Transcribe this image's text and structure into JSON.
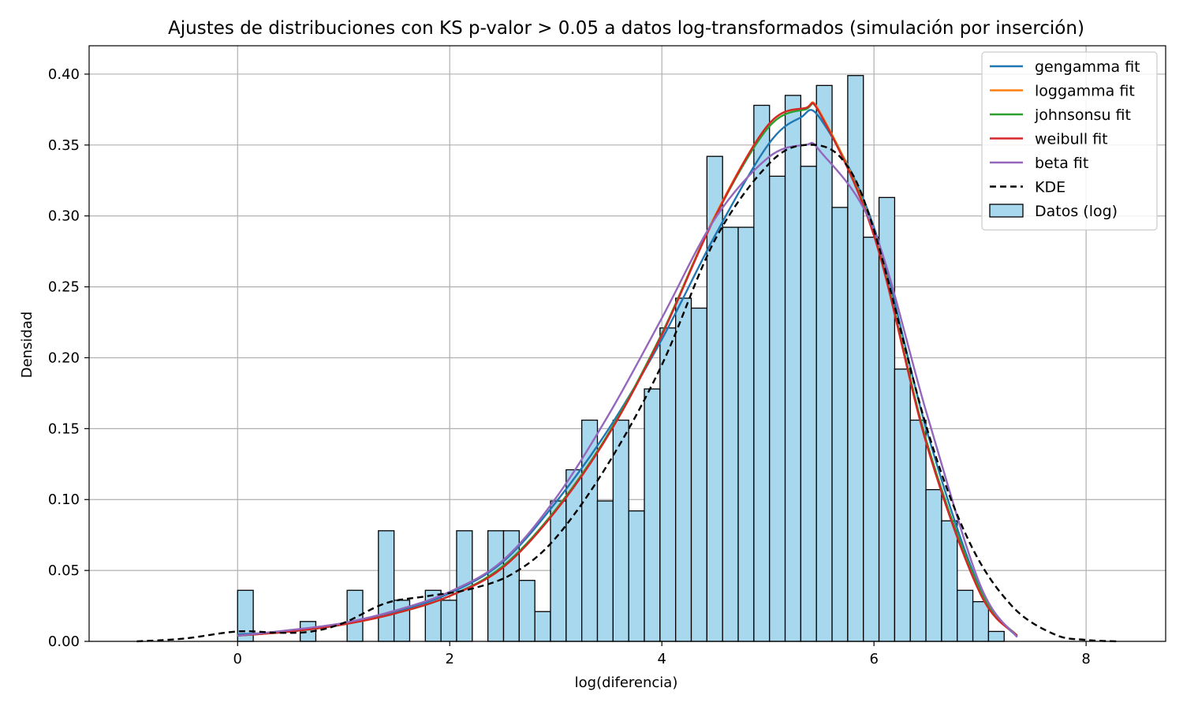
{
  "chart_data": {
    "type": "bar",
    "title": "Ajustes de distribuciones con KS p-valor > 0.05 a datos log-transformados (simulación por inserción)",
    "xlabel": "log(diferencia)",
    "ylabel": "Densidad",
    "xlim": [
      -1.4,
      8.75
    ],
    "ylim": [
      0.0,
      0.42
    ],
    "grid": true,
    "legend_position": "top-right",
    "x_ticks": [
      0,
      2,
      4,
      6,
      8
    ],
    "y_ticks": [
      0.0,
      0.05,
      0.1,
      0.15,
      0.2,
      0.25,
      0.3,
      0.35,
      0.4
    ],
    "histogram": {
      "name": "Datos (log)",
      "color": "#a8d8ee",
      "edge_color": "#000000",
      "bin_start": 0.0,
      "bin_width": 0.1475,
      "values": [
        0.036,
        0.0,
        0.0,
        0.0,
        0.014,
        0.0,
        0.0,
        0.036,
        0.0,
        0.078,
        0.029,
        0.0,
        0.036,
        0.029,
        0.078,
        0.0,
        0.078,
        0.078,
        0.043,
        0.021,
        0.099,
        0.121,
        0.156,
        0.099,
        0.156,
        0.092,
        0.178,
        0.221,
        0.242,
        0.235,
        0.342,
        0.292,
        0.292,
        0.378,
        0.328,
        0.385,
        0.335,
        0.392,
        0.306,
        0.399,
        0.285,
        0.313,
        0.192,
        0.156,
        0.107,
        0.085,
        0.036,
        0.028,
        0.007
      ]
    },
    "series": [
      {
        "name": "gengamma fit",
        "color": "#1f77b4",
        "style": "solid",
        "x": [
          0,
          0.5,
          1,
          1.5,
          2,
          2.5,
          3,
          3.5,
          4,
          4.5,
          5,
          5.3,
          5.5,
          6,
          6.5,
          7,
          7.35
        ],
        "y": [
          0.005,
          0.007,
          0.012,
          0.021,
          0.034,
          0.056,
          0.098,
          0.15,
          0.213,
          0.286,
          0.35,
          0.369,
          0.368,
          0.292,
          0.148,
          0.037,
          0.003
        ]
      },
      {
        "name": "loggamma fit",
        "color": "#ff7f0e",
        "style": "solid",
        "x": [
          0,
          0.5,
          1,
          1.5,
          2,
          2.5,
          3,
          3.5,
          4,
          4.5,
          5,
          5.35,
          5.5,
          6,
          6.5,
          7,
          7.35
        ],
        "y": [
          0.004,
          0.007,
          0.012,
          0.02,
          0.032,
          0.052,
          0.093,
          0.147,
          0.217,
          0.3,
          0.364,
          0.376,
          0.372,
          0.288,
          0.14,
          0.035,
          0.004
        ]
      },
      {
        "name": "johnsonsu fit",
        "color": "#2ca02c",
        "style": "solid",
        "x": [
          0,
          0.5,
          1,
          1.5,
          2,
          2.5,
          3,
          3.5,
          4,
          4.5,
          5,
          5.35,
          5.5,
          6,
          6.5,
          7,
          7.35
        ],
        "y": [
          0.004,
          0.007,
          0.012,
          0.02,
          0.032,
          0.053,
          0.093,
          0.147,
          0.217,
          0.299,
          0.362,
          0.375,
          0.371,
          0.287,
          0.14,
          0.036,
          0.004
        ]
      },
      {
        "name": "weibull fit",
        "color": "#d62728",
        "style": "solid",
        "x": [
          0,
          0.5,
          1,
          1.5,
          2,
          2.5,
          3,
          3.5,
          4,
          4.5,
          5,
          5.35,
          5.5,
          6,
          6.5,
          7,
          7.35
        ],
        "y": [
          0.004,
          0.007,
          0.012,
          0.02,
          0.032,
          0.052,
          0.092,
          0.146,
          0.216,
          0.299,
          0.364,
          0.376,
          0.371,
          0.286,
          0.138,
          0.034,
          0.004
        ]
      },
      {
        "name": "beta fit",
        "color": "#9467bd",
        "style": "solid",
        "x": [
          0,
          0.5,
          1,
          1.5,
          2,
          2.5,
          3,
          3.5,
          4,
          4.5,
          5,
          5.35,
          5.5,
          6,
          6.5,
          7,
          7.35
        ],
        "y": [
          0.004,
          0.008,
          0.013,
          0.022,
          0.035,
          0.057,
          0.101,
          0.16,
          0.228,
          0.298,
          0.341,
          0.35,
          0.345,
          0.29,
          0.16,
          0.04,
          0.003
        ]
      },
      {
        "name": "KDE",
        "color": "#000000",
        "style": "dashed",
        "x": [
          -0.95,
          -0.5,
          0,
          0.4,
          0.7,
          1.0,
          1.4,
          1.8,
          2.2,
          2.6,
          3.0,
          3.5,
          4.0,
          4.5,
          5.0,
          5.35,
          5.7,
          6.0,
          6.5,
          6.9,
          7.3,
          7.7,
          8.0,
          8.3
        ],
        "y": [
          0.0,
          0.002,
          0.007,
          0.006,
          0.007,
          0.013,
          0.027,
          0.032,
          0.037,
          0.048,
          0.073,
          0.126,
          0.195,
          0.283,
          0.336,
          0.35,
          0.34,
          0.29,
          0.15,
          0.07,
          0.025,
          0.005,
          0.001,
          0.0
        ]
      }
    ]
  }
}
